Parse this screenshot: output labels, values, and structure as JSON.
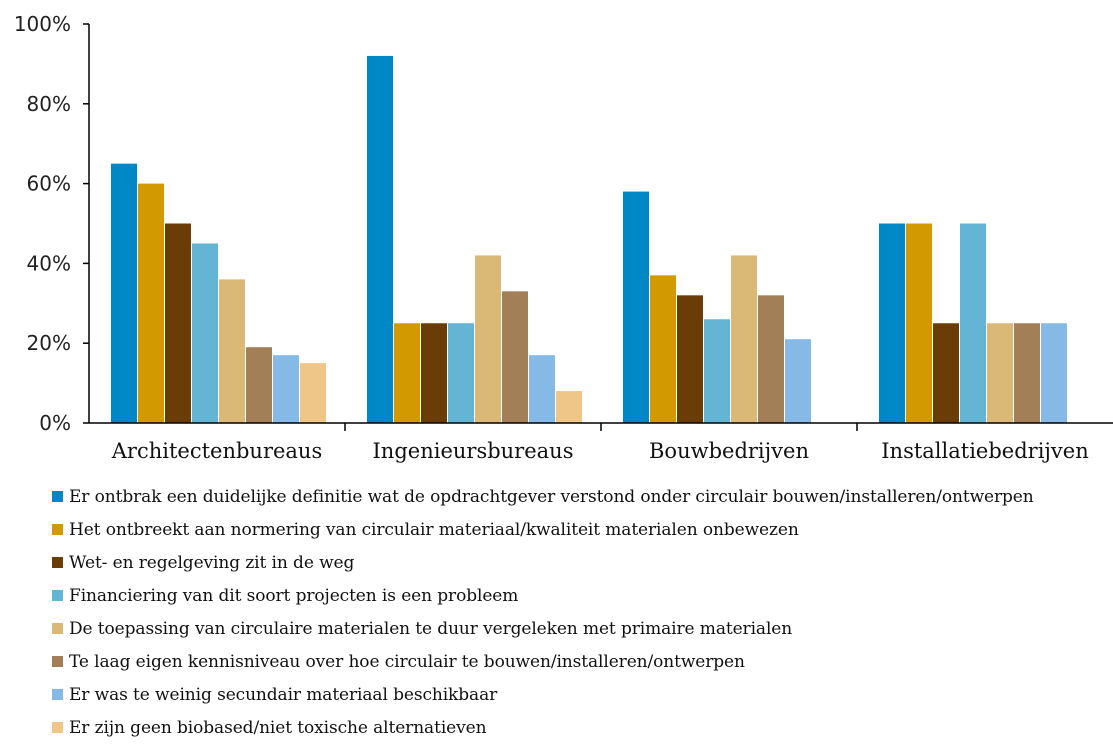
{
  "chart_data": {
    "type": "bar",
    "categories": [
      "Architectenbureaus",
      "Ingenieursbureaus",
      "Bouwbedrijven",
      "Installatiebedrijven"
    ],
    "y_ticks": [
      "0%",
      "20%",
      "40%",
      "60%",
      "80%",
      "100%"
    ],
    "ylim": [
      0,
      100
    ],
    "grid": false,
    "legend_position": "bottom",
    "series": [
      {
        "name": "Er ontbrak een duidelijke definitie wat de opdrachtgever verstond onder circulair bouwen/installeren/ontwerpen",
        "color": "#0088c6",
        "values": [
          65,
          92,
          58,
          50
        ]
      },
      {
        "name": "Het ontbreekt aan normering van circulair materiaal/kwaliteit materialen onbewezen",
        "color": "#d29a00",
        "values": [
          60,
          25,
          37,
          50
        ]
      },
      {
        "name": "Wet- en regelgeving zit in de weg",
        "color": "#6b3d06",
        "values": [
          50,
          25,
          32,
          25
        ]
      },
      {
        "name": "Financiering van dit soort projecten is een probleem",
        "color": "#64b4d6",
        "values": [
          45,
          25,
          26,
          50
        ]
      },
      {
        "name": "De toepassing van circulaire materialen te duur vergeleken met primaire materialen",
        "color": "#dab876",
        "values": [
          36,
          42,
          42,
          25
        ]
      },
      {
        "name": "Te laag eigen kennisniveau over hoe circulair te bouwen/installeren/ontwerpen",
        "color": "#a37f57",
        "values": [
          19,
          33,
          32,
          25
        ]
      },
      {
        "name": "Er was te weinig secundair materiaal beschikbaar",
        "color": "#85b9e6",
        "values": [
          17,
          17,
          21,
          25
        ]
      },
      {
        "name": "Er zijn geen biobased/niet toxische alternatieven",
        "color": "#efc687",
        "values": [
          15,
          8,
          0,
          0
        ]
      }
    ]
  }
}
